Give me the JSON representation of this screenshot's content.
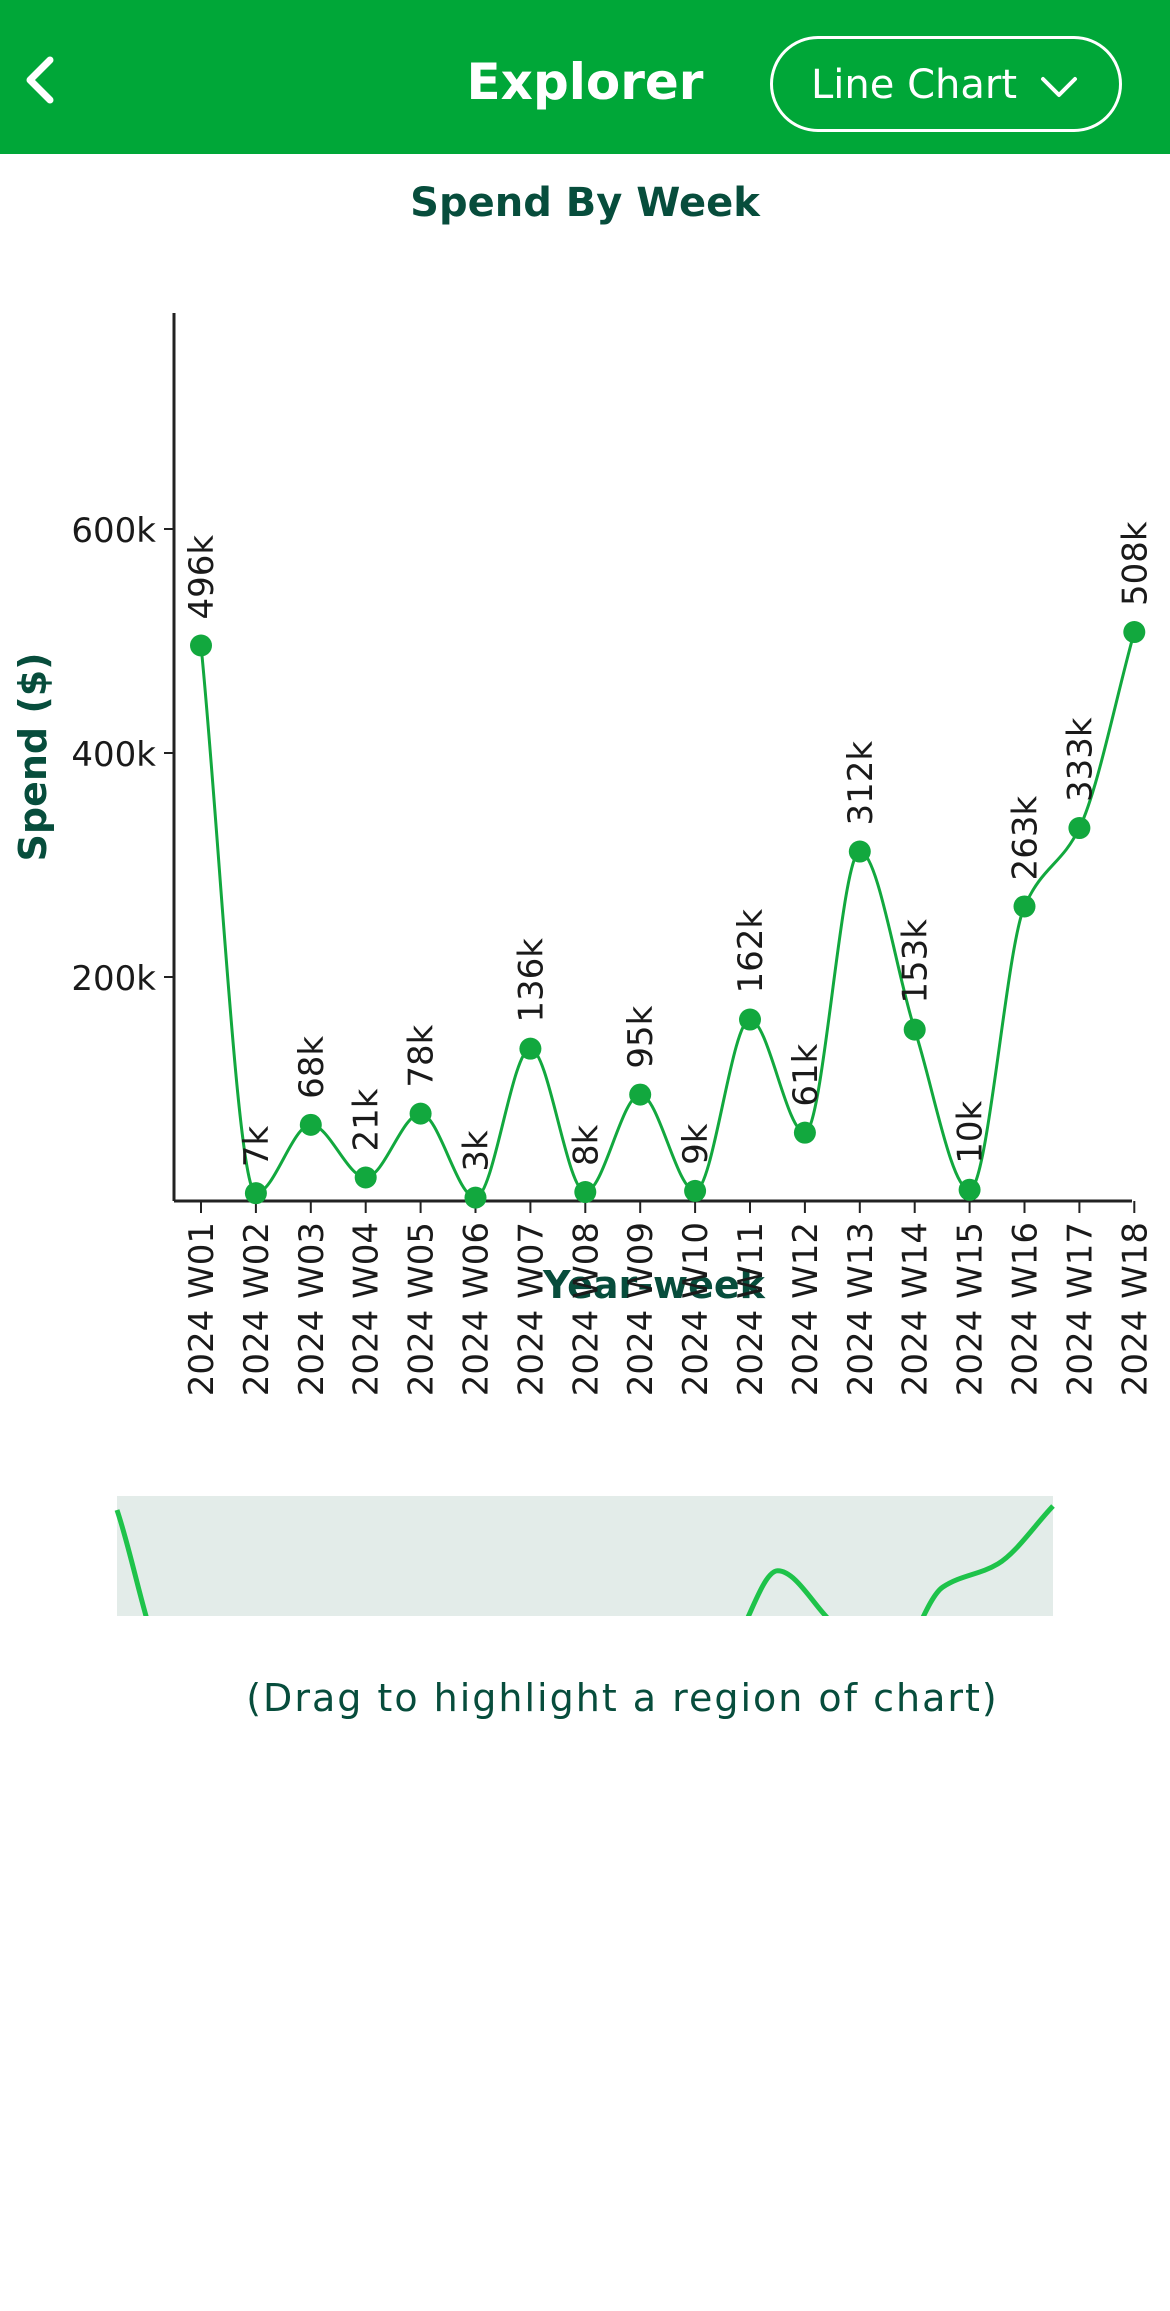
{
  "header": {
    "title": "Explorer",
    "chart_type_selected": "Line Chart",
    "icons": {
      "back": "chevron-left-icon",
      "dropdown": "chevron-down-icon"
    }
  },
  "brush": {
    "hint": "(Drag to highlight a region of chart)"
  },
  "colors": {
    "header_bg": "#00a738",
    "line": "#12a83e",
    "brush_line": "#1ec34a",
    "brush_bg": "#e3ece9",
    "label_text": "#074d3c"
  },
  "chart_data": {
    "type": "line",
    "title": "Spend By Week",
    "xlabel": "Year-week",
    "ylabel": "Spend ($)",
    "ylim": [
      0,
      790000
    ],
    "yticks": [
      200000,
      400000,
      600000
    ],
    "ytick_labels": [
      "200k",
      "400k",
      "600k"
    ],
    "grid": false,
    "categories": [
      "2024 W01",
      "2024 W02",
      "2024 W03",
      "2024 W04",
      "2024 W05",
      "2024 W06",
      "2024 W07",
      "2024 W08",
      "2024 W09",
      "2024 W10",
      "2024 W11",
      "2024 W12",
      "2024 W13",
      "2024 W14",
      "2024 W15",
      "2024 W16",
      "2024 W17",
      "2024 W18"
    ],
    "series": [
      {
        "values": [
          496000,
          7000,
          68000,
          21000,
          78000,
          3000,
          136000,
          8000,
          95000,
          9000,
          162000,
          61000,
          312000,
          153000,
          10000,
          263000,
          333000,
          508000
        ],
        "data_labels": [
          "496k",
          "7k",
          "68k",
          "21k",
          "78k",
          "3k",
          "136k",
          "8k",
          "95k",
          "9k",
          "162k",
          "61k",
          "312k",
          "153k",
          "10k",
          "263k",
          "333k",
          "508k"
        ]
      }
    ]
  }
}
